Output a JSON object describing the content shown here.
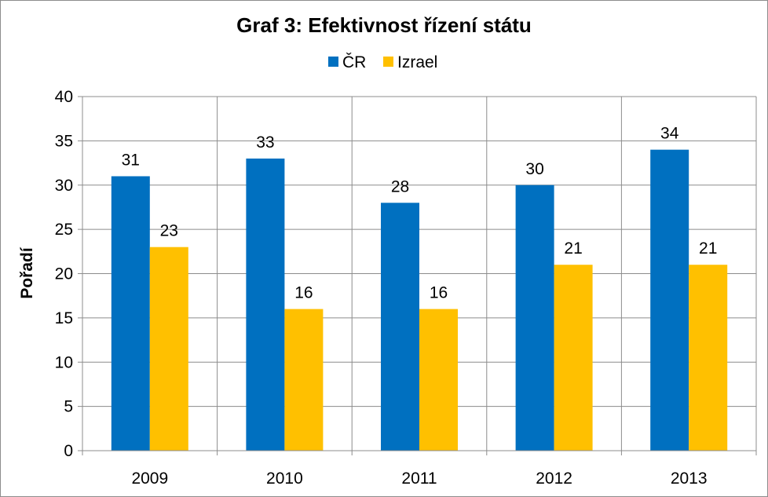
{
  "chart_data": {
    "type": "bar",
    "title": "Graf 3: Efektivnost řízení státu",
    "xlabel": "",
    "ylabel": "Pořadí",
    "categories": [
      "2009",
      "2010",
      "2011",
      "2012",
      "2013"
    ],
    "series": [
      {
        "name": "ČR",
        "color": "#0070C0",
        "values": [
          31,
          33,
          28,
          30,
          34
        ]
      },
      {
        "name": "Izrael",
        "color": "#FFC000",
        "values": [
          23,
          16,
          16,
          21,
          21
        ]
      }
    ],
    "ylim": [
      0,
      40
    ],
    "yticks": [
      "0",
      "5",
      "10",
      "15",
      "20",
      "25",
      "30",
      "35",
      "40"
    ],
    "grid": true,
    "legend_position": "top",
    "data_labels": true
  }
}
